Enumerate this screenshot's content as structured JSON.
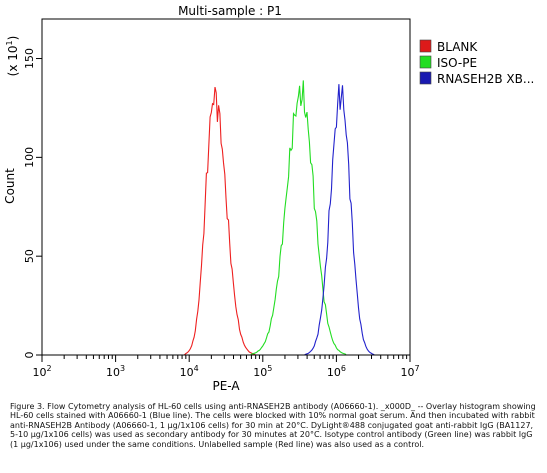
{
  "chart_data": {
    "type": "histogram",
    "title": "Multi-sample : P1",
    "xlabel": "PE-A",
    "ylabel": "Count",
    "y_multiplier_label": "(x 10",
    "y_multiplier_exp": "1",
    "x_scale": "log",
    "xlim": [
      100,
      10000000
    ],
    "ylim": [
      0,
      170
    ],
    "x_ticks": [
      {
        "value": 100,
        "base": "10",
        "exp": "2"
      },
      {
        "value": 1000,
        "base": "10",
        "exp": "3"
      },
      {
        "value": 10000,
        "base": "10",
        "exp": "4"
      },
      {
        "value": 100000,
        "base": "10",
        "exp": "5"
      },
      {
        "value": 1000000,
        "base": "10",
        "exp": "6"
      },
      {
        "value": 10000000,
        "base": "10",
        "exp": "7"
      }
    ],
    "y_ticks": [
      0,
      50,
      100,
      150
    ],
    "legend_position": "right",
    "series": [
      {
        "name": "BLANK",
        "color": "#ee2020",
        "swatch": "#dd1a1a",
        "peak_x": 22000,
        "peak_y": 131,
        "left_width": 0.12,
        "right_width": 0.16
      },
      {
        "name": "ISO-PE",
        "color": "#22dd22",
        "swatch": "#22dd22",
        "peak_x": 330000,
        "peak_y": 132,
        "left_width": 0.2,
        "right_width": 0.18
      },
      {
        "name": "RNASEH2B XB...",
        "color": "#2222cc",
        "swatch": "#1a1ab0",
        "peak_x": 1150000,
        "peak_y": 132,
        "left_width": 0.14,
        "right_width": 0.13
      }
    ]
  },
  "caption": "Figure 3. Flow Cytometry analysis of HL-60 cells using anti-RNASEH2B antibody (A06660-1). _x000D_ -- Overlay histogram showing HL-60 cells stained with A06660-1 (Blue line). The cells were blocked with 10% normal goat serum. And then incubated with rabbit anti-RNASEH2B Antibody (A06660-1, 1 μg/1x106 cells) for 30 min at 20°C. DyLight®488 conjugated goat anti-rabbit IgG (BA1127, 5-10 μg/1x106 cells) was used as secondary antibody for 30 minutes at 20°C. Isotype control antibody (Green line) was rabbit IgG (1 μg/1x106) used under the same conditions. Unlabelled sample (Red line) was also used as a control."
}
